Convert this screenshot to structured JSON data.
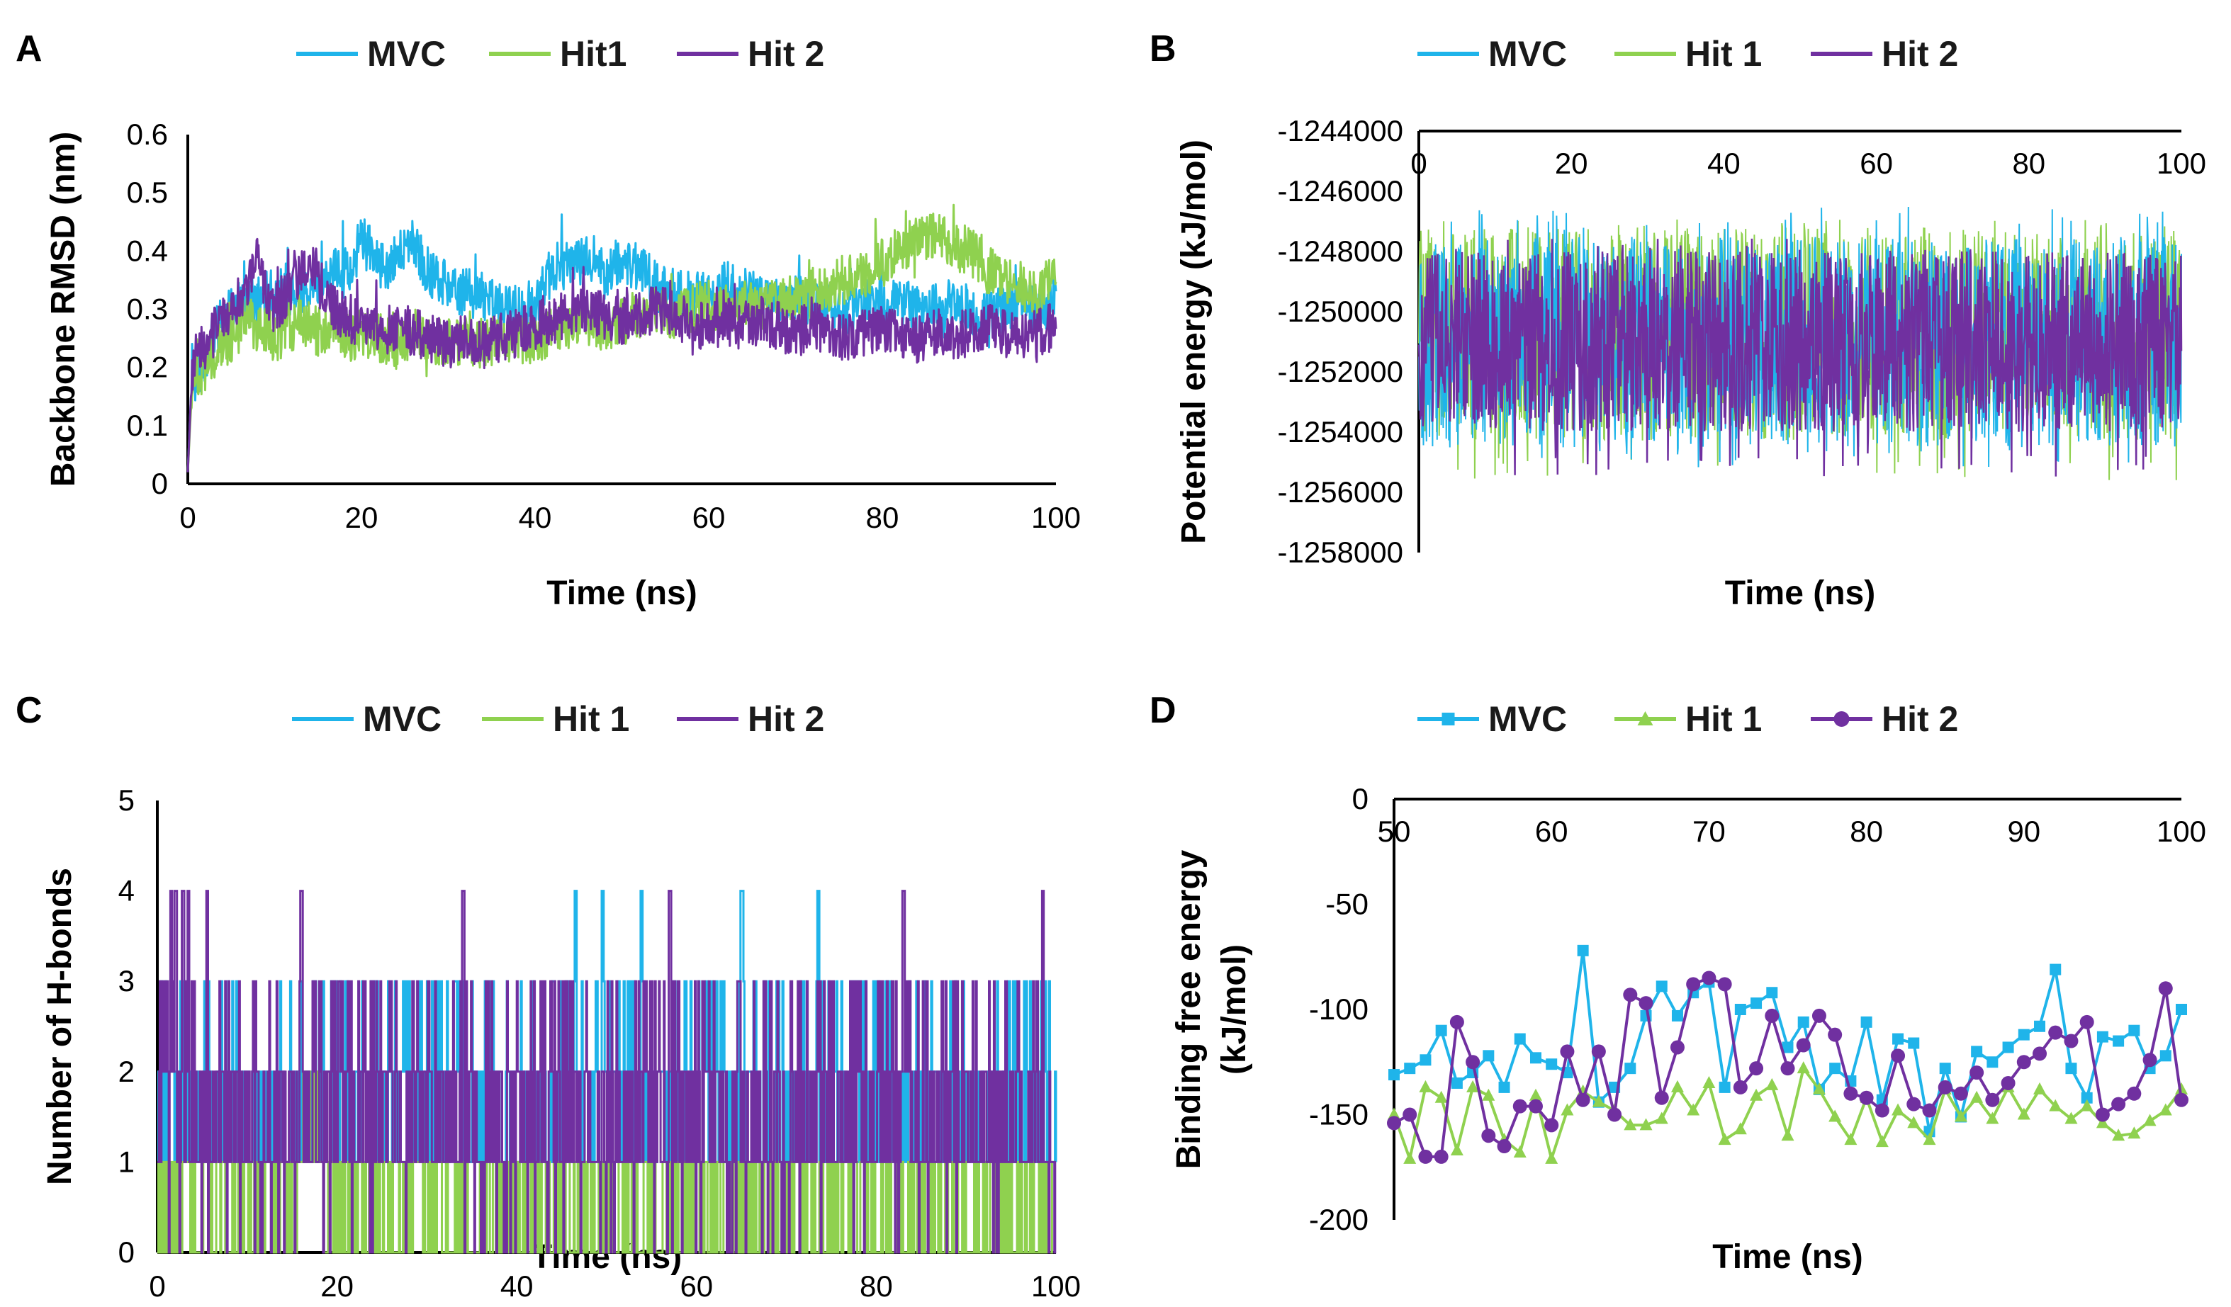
{
  "colors": {
    "MVC": "#1fb4ea",
    "Hit 1": "#8fd14f",
    "Hit 2": "#7030a0",
    "axis": "#000000"
  },
  "chart_data": [
    {
      "id": "A",
      "panel_letter": "A",
      "type": "line",
      "title": "",
      "xlabel": "Time (ns)",
      "ylabel": "Backbone RMSD (nm)",
      "xlim": [
        0,
        100
      ],
      "ylim": [
        0,
        0.6
      ],
      "grid": false,
      "legend_position": "top",
      "x_ticks": [
        "0",
        "20",
        "40",
        "60",
        "80",
        "100"
      ],
      "y_ticks": [
        "0",
        "0.1",
        "0.2",
        "0.3",
        "0.4",
        "0.5",
        "0.6"
      ],
      "series": [
        {
          "name": "MVC",
          "legend_label": "MVC",
          "x": [
            0,
            0.5,
            1,
            2,
            3,
            4,
            5,
            6,
            7,
            8,
            9,
            10,
            11,
            12,
            13,
            14,
            15,
            16,
            17,
            18,
            19,
            20,
            21,
            22,
            23,
            24,
            25,
            26,
            27,
            28,
            29,
            30,
            32,
            34,
            36,
            38,
            40,
            42,
            44,
            46,
            48,
            50,
            52,
            54,
            56,
            58,
            60,
            62,
            64,
            66,
            68,
            70,
            72,
            74,
            76,
            78,
            80,
            82,
            84,
            86,
            88,
            90,
            92,
            94,
            96,
            98,
            100
          ],
          "values": [
            0.02,
            0.2,
            0.18,
            0.22,
            0.26,
            0.28,
            0.3,
            0.31,
            0.32,
            0.31,
            0.33,
            0.32,
            0.34,
            0.33,
            0.32,
            0.33,
            0.35,
            0.36,
            0.37,
            0.36,
            0.38,
            0.42,
            0.4,
            0.38,
            0.37,
            0.39,
            0.4,
            0.42,
            0.38,
            0.36,
            0.35,
            0.34,
            0.33,
            0.32,
            0.31,
            0.3,
            0.31,
            0.37,
            0.38,
            0.4,
            0.36,
            0.38,
            0.37,
            0.34,
            0.33,
            0.32,
            0.33,
            0.34,
            0.33,
            0.32,
            0.31,
            0.32,
            0.3,
            0.31,
            0.3,
            0.31,
            0.3,
            0.31,
            0.3,
            0.3,
            0.31,
            0.3,
            0.29,
            0.3,
            0.31,
            0.3,
            0.32
          ]
        },
        {
          "name": "Hit 1",
          "legend_label": "Hit1",
          "x": [
            0,
            0.5,
            1,
            2,
            3,
            4,
            5,
            6,
            7,
            8,
            9,
            10,
            11,
            12,
            13,
            14,
            15,
            16,
            17,
            18,
            19,
            20,
            22,
            24,
            26,
            28,
            30,
            32,
            34,
            36,
            38,
            40,
            42,
            44,
            46,
            48,
            50,
            52,
            54,
            56,
            58,
            60,
            62,
            64,
            66,
            68,
            70,
            72,
            74,
            76,
            78,
            80,
            82,
            84,
            86,
            88,
            90,
            92,
            94,
            96,
            98,
            100
          ],
          "values": [
            0.02,
            0.17,
            0.18,
            0.2,
            0.22,
            0.24,
            0.25,
            0.27,
            0.28,
            0.27,
            0.26,
            0.25,
            0.26,
            0.27,
            0.28,
            0.27,
            0.26,
            0.27,
            0.28,
            0.26,
            0.25,
            0.26,
            0.25,
            0.24,
            0.26,
            0.25,
            0.24,
            0.25,
            0.24,
            0.25,
            0.24,
            0.25,
            0.26,
            0.27,
            0.28,
            0.27,
            0.28,
            0.29,
            0.3,
            0.29,
            0.3,
            0.31,
            0.3,
            0.31,
            0.3,
            0.31,
            0.32,
            0.33,
            0.34,
            0.35,
            0.36,
            0.38,
            0.4,
            0.42,
            0.43,
            0.41,
            0.4,
            0.37,
            0.35,
            0.34,
            0.33,
            0.36
          ]
        },
        {
          "name": "Hit 2",
          "legend_label": "Hit 2",
          "x": [
            0,
            0.5,
            1,
            2,
            3,
            4,
            5,
            6,
            7,
            8,
            9,
            10,
            11,
            12,
            13,
            14,
            15,
            16,
            17,
            18,
            19,
            20,
            22,
            24,
            26,
            28,
            30,
            32,
            34,
            36,
            38,
            40,
            42,
            44,
            46,
            48,
            50,
            52,
            54,
            56,
            58,
            60,
            62,
            64,
            66,
            68,
            70,
            72,
            74,
            76,
            78,
            80,
            82,
            84,
            86,
            88,
            90,
            92,
            94,
            96,
            98,
            100
          ],
          "values": [
            0.02,
            0.2,
            0.22,
            0.24,
            0.26,
            0.28,
            0.3,
            0.32,
            0.35,
            0.38,
            0.33,
            0.3,
            0.32,
            0.34,
            0.36,
            0.38,
            0.35,
            0.32,
            0.3,
            0.29,
            0.28,
            0.27,
            0.26,
            0.27,
            0.26,
            0.25,
            0.24,
            0.25,
            0.24,
            0.25,
            0.26,
            0.27,
            0.28,
            0.29,
            0.3,
            0.29,
            0.28,
            0.29,
            0.3,
            0.29,
            0.28,
            0.27,
            0.28,
            0.27,
            0.28,
            0.27,
            0.26,
            0.27,
            0.26,
            0.25,
            0.26,
            0.27,
            0.26,
            0.25,
            0.26,
            0.25,
            0.26,
            0.27,
            0.26,
            0.25,
            0.26,
            0.27
          ]
        }
      ]
    },
    {
      "id": "B",
      "panel_letter": "B",
      "type": "line",
      "title": "",
      "xlabel": "Time (ns)",
      "ylabel": "Potential energy (kJ/mol)",
      "xlim": [
        0,
        100
      ],
      "ylim": [
        -1258000,
        -1244000
      ],
      "grid": false,
      "legend_position": "top",
      "x_axis_position": "top",
      "x_ticks": [
        "0",
        "20",
        "40",
        "60",
        "80",
        "100"
      ],
      "y_ticks": [
        "-1244000",
        "-1246000",
        "-1248000",
        "-1250000",
        "-1252000",
        "-1254000",
        "-1256000",
        "-1258000"
      ],
      "series": [
        {
          "name": "MVC",
          "legend_label": "MVC",
          "mean": -1251200,
          "band": [
            -1254500,
            -1247500
          ],
          "extremes": [
            -1255200,
            -1246500
          ]
        },
        {
          "name": "Hit 1",
          "legend_label": "Hit 1",
          "mean": -1251200,
          "band": [
            -1254300,
            -1247200
          ],
          "extremes": [
            -1255600,
            -1246900
          ]
        },
        {
          "name": "Hit 2",
          "legend_label": "Hit 2",
          "mean": -1251300,
          "band": [
            -1254000,
            -1248000
          ],
          "extremes": [
            -1255500,
            -1247500
          ]
        }
      ]
    },
    {
      "id": "C",
      "panel_letter": "C",
      "type": "line",
      "title": "",
      "xlabel": "Time (ns)",
      "ylabel": "Number of H-bonds",
      "xlim": [
        0,
        100
      ],
      "ylim": [
        0,
        5
      ],
      "grid": false,
      "legend_position": "top",
      "x_ticks": [
        "0",
        "20",
        "40",
        "60",
        "80",
        "100"
      ],
      "y_ticks": [
        "0",
        "1",
        "2",
        "3",
        "4",
        "5"
      ],
      "series": [
        {
          "name": "MVC",
          "legend_label": "MVC",
          "typical_range": [
            1,
            3
          ],
          "peak_times": [
            46.5,
            49.5,
            53.8,
            65,
            73.5
          ]
        },
        {
          "name": "Hit 1",
          "legend_label": "Hit 1",
          "typical_range": [
            0,
            1
          ],
          "step_2_intervals": [
            [
              15.5,
              18.5
            ]
          ]
        },
        {
          "name": "Hit 2",
          "legend_label": "Hit 2",
          "typical_range": [
            1,
            3
          ],
          "peak_times": [
            1.5,
            2,
            2.8,
            3.4,
            5.5,
            16,
            34,
            57,
            83,
            98.5
          ]
        }
      ]
    },
    {
      "id": "D",
      "panel_letter": "D",
      "type": "line",
      "title": "",
      "xlabel": "Time (ns)",
      "ylabel": "Binding free energy (kJ/mol)",
      "xlim": [
        50,
        100
      ],
      "ylim": [
        -200,
        0
      ],
      "grid": false,
      "legend_position": "top",
      "x_axis_position": "top",
      "x_ticks": [
        "50",
        "60",
        "70",
        "80",
        "90",
        "100"
      ],
      "y_ticks": [
        "0",
        "-50",
        "-100",
        "-150",
        "-200"
      ],
      "series": [
        {
          "name": "MVC",
          "legend_label": "MVC",
          "marker": "square",
          "x": [
            50,
            51,
            52,
            53,
            54,
            55,
            56,
            57,
            58,
            59,
            60,
            61,
            62,
            63,
            64,
            65,
            66,
            67,
            68,
            69,
            70,
            71,
            72,
            73,
            74,
            75,
            76,
            77,
            78,
            79,
            80,
            81,
            82,
            83,
            84,
            85,
            86,
            87,
            88,
            89,
            90,
            91,
            92,
            93,
            94,
            95,
            96,
            97,
            98,
            99,
            100
          ],
          "values": [
            -131,
            -128,
            -124,
            -110,
            -135,
            -130,
            -122,
            -137,
            -114,
            -123,
            -126,
            -130,
            -72,
            -144,
            -137,
            -128,
            -103,
            -89,
            -103,
            -92,
            -87,
            -137,
            -100,
            -97,
            -92,
            -118,
            -106,
            -138,
            -128,
            -134,
            -106,
            -143,
            -114,
            -116,
            -158,
            -128,
            -151,
            -120,
            -125,
            -118,
            -112,
            -108,
            -81,
            -128,
            -142,
            -113,
            -115,
            -110,
            -128,
            -122,
            -100
          ]
        },
        {
          "name": "Hit 1",
          "legend_label": "Hit 1",
          "marker": "triangle",
          "x": [
            50,
            51,
            52,
            53,
            54,
            55,
            56,
            57,
            58,
            59,
            60,
            61,
            62,
            63,
            64,
            65,
            66,
            67,
            68,
            69,
            70,
            71,
            72,
            73,
            74,
            75,
            76,
            77,
            78,
            79,
            80,
            81,
            82,
            83,
            84,
            85,
            86,
            87,
            88,
            89,
            90,
            91,
            92,
            93,
            94,
            95,
            96,
            97,
            98,
            99,
            100
          ],
          "values": [
            -150,
            -171,
            -137,
            -142,
            -167,
            -137,
            -141,
            -162,
            -168,
            -141,
            -171,
            -148,
            -139,
            -144,
            -148,
            -155,
            -155,
            -152,
            -137,
            -148,
            -135,
            -162,
            -157,
            -141,
            -136,
            -160,
            -128,
            -138,
            -151,
            -162,
            -142,
            -163,
            -148,
            -154,
            -162,
            -138,
            -151,
            -142,
            -152,
            -137,
            -150,
            -138,
            -146,
            -152,
            -146,
            -154,
            -160,
            -159,
            -153,
            -148,
            -138
          ]
        },
        {
          "name": "Hit 2",
          "legend_label": "Hit 2",
          "marker": "circle",
          "x": [
            50,
            51,
            52,
            53,
            54,
            55,
            56,
            57,
            58,
            59,
            60,
            61,
            62,
            63,
            64,
            65,
            66,
            67,
            68,
            69,
            70,
            71,
            72,
            73,
            74,
            75,
            76,
            77,
            78,
            79,
            80,
            81,
            82,
            83,
            84,
            85,
            86,
            87,
            88,
            89,
            90,
            91,
            92,
            93,
            94,
            95,
            96,
            97,
            98,
            99,
            100
          ],
          "values": [
            -154,
            -150,
            -170,
            -170,
            -106,
            -125,
            -160,
            -165,
            -146,
            -146,
            -155,
            -120,
            -143,
            -120,
            -150,
            -93,
            -97,
            -142,
            -118,
            -88,
            -85,
            -88,
            -137,
            -128,
            -103,
            -128,
            -117,
            -103,
            -112,
            -140,
            -142,
            -148,
            -122,
            -145,
            -148,
            -137,
            -140,
            -130,
            -143,
            -135,
            -125,
            -121,
            -111,
            -115,
            -106,
            -150,
            -145,
            -140,
            -124,
            -90,
            -143
          ]
        }
      ]
    }
  ]
}
